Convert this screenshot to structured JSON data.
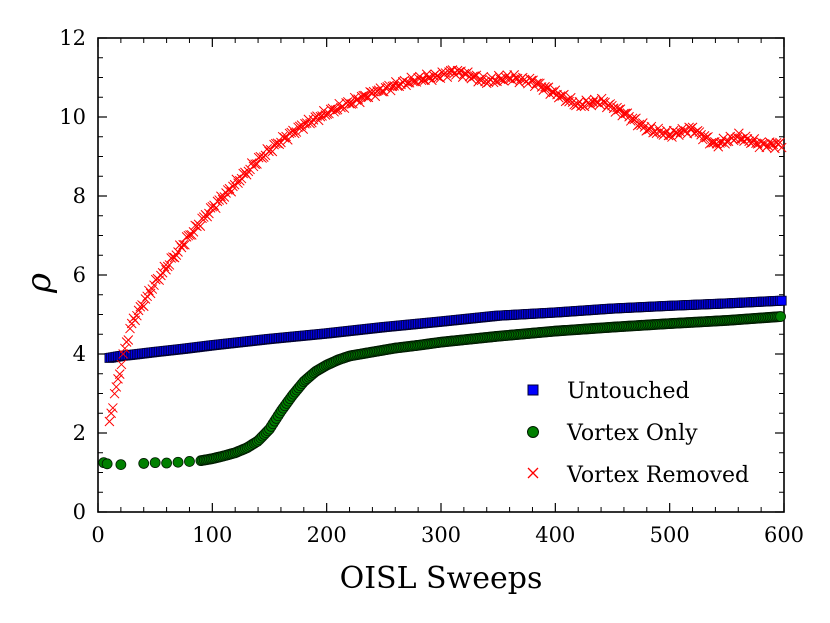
{
  "chart_data": {
    "type": "scatter",
    "title": "",
    "xlabel": "OISL Sweeps",
    "ylabel": "ρ",
    "xlim": [
      0,
      600
    ],
    "ylim": [
      0,
      12
    ],
    "xticks": [
      "0",
      "100",
      "200",
      "300",
      "400",
      "500",
      "600"
    ],
    "yticks": [
      "0",
      "2",
      "4",
      "6",
      "8",
      "10",
      "12"
    ],
    "grid": false,
    "legend_position": "lower-right",
    "series": [
      {
        "name": "Untouched",
        "marker": "square",
        "color": "#0000ff",
        "edge_color": "#000033",
        "x": [
          10,
          20,
          30,
          50,
          75,
          100,
          125,
          150,
          175,
          200,
          250,
          300,
          350,
          400,
          450,
          500,
          550,
          598
        ],
        "y": [
          3.9,
          3.95,
          3.98,
          4.05,
          4.13,
          4.22,
          4.3,
          4.38,
          4.45,
          4.52,
          4.68,
          4.82,
          4.97,
          5.05,
          5.15,
          5.22,
          5.28,
          5.35
        ]
      },
      {
        "name": "Vortex Only",
        "marker": "circle",
        "color": "#008000",
        "edge_color": "#001a00",
        "x": [
          5,
          8,
          20,
          40,
          50,
          60,
          70,
          80,
          90,
          100,
          110,
          120,
          130,
          140,
          150,
          160,
          170,
          180,
          190,
          200,
          210,
          220,
          240,
          260,
          280,
          300,
          350,
          400,
          450,
          500,
          550,
          598
        ],
        "y": [
          1.25,
          1.22,
          1.2,
          1.23,
          1.25,
          1.24,
          1.26,
          1.28,
          1.3,
          1.35,
          1.42,
          1.5,
          1.62,
          1.8,
          2.1,
          2.55,
          2.95,
          3.3,
          3.55,
          3.72,
          3.85,
          3.95,
          4.05,
          4.15,
          4.22,
          4.3,
          4.45,
          4.58,
          4.68,
          4.77,
          4.85,
          4.95
        ]
      },
      {
        "name": "Vortex Removed",
        "marker": "x",
        "color": "#ff0000",
        "x": [
          10,
          15,
          20,
          25,
          30,
          40,
          50,
          60,
          70,
          80,
          90,
          100,
          110,
          120,
          130,
          140,
          150,
          160,
          170,
          180,
          190,
          200,
          220,
          240,
          260,
          280,
          300,
          310,
          320,
          340,
          360,
          380,
          400,
          420,
          440,
          460,
          480,
          500,
          520,
          540,
          560,
          580,
          598
        ],
        "y": [
          2.3,
          3.0,
          3.7,
          4.3,
          4.8,
          5.3,
          5.8,
          6.2,
          6.6,
          7.0,
          7.35,
          7.7,
          8.0,
          8.3,
          8.6,
          8.9,
          9.15,
          9.4,
          9.6,
          9.8,
          9.95,
          10.1,
          10.35,
          10.6,
          10.8,
          10.95,
          11.05,
          11.15,
          11.1,
          10.9,
          11.0,
          10.9,
          10.6,
          10.3,
          10.4,
          10.1,
          9.7,
          9.55,
          9.7,
          9.3,
          9.5,
          9.3,
          9.3
        ]
      }
    ]
  }
}
